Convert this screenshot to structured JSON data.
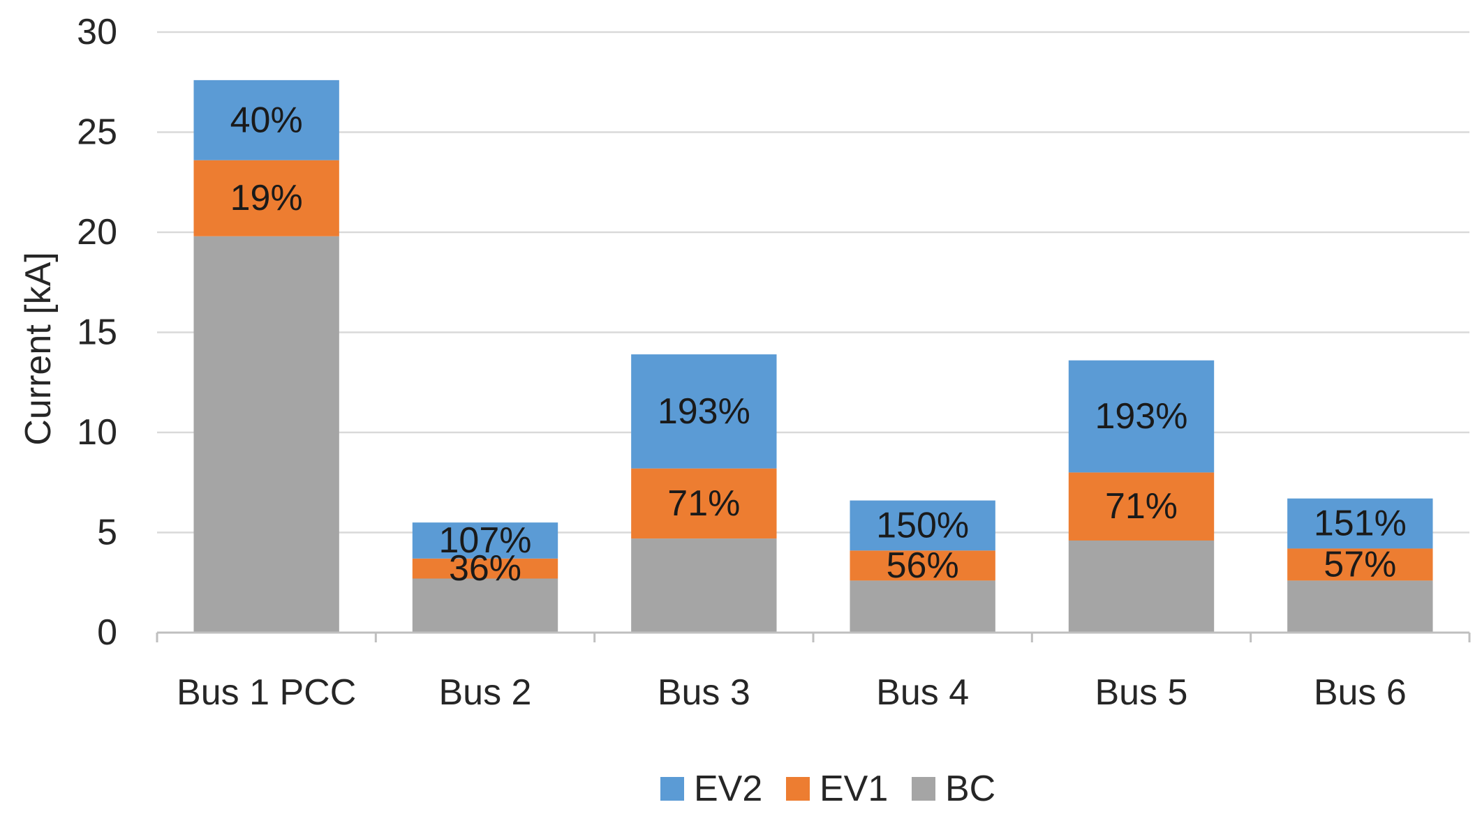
{
  "chart_data": {
    "type": "bar",
    "stacked": true,
    "title": "",
    "xlabel": "",
    "ylabel": "Current [kA]",
    "ylim": [
      0,
      30
    ],
    "yticks": [
      0,
      5,
      10,
      15,
      20,
      25,
      30
    ],
    "grid": true,
    "legend": "bottom-center",
    "categories": [
      "Bus 1 PCC",
      "Bus 2",
      "Bus 3",
      "Bus 4",
      "Bus 5",
      "Bus 6"
    ],
    "series": [
      {
        "name": "BC",
        "color": "#a5a5a5",
        "values": [
          19.8,
          2.7,
          4.7,
          2.6,
          4.6,
          2.6
        ],
        "labels": [
          "",
          "",
          "",
          "",
          "",
          ""
        ]
      },
      {
        "name": "EV1",
        "color": "#ed7d31",
        "values": [
          3.8,
          1.0,
          3.5,
          1.5,
          3.4,
          1.6
        ],
        "labels": [
          "19%",
          "36%",
          "71%",
          "56%",
          "71%",
          "57%"
        ]
      },
      {
        "name": "EV2",
        "color": "#5b9bd5",
        "values": [
          4.0,
          1.8,
          5.7,
          2.5,
          5.6,
          2.5
        ],
        "labels": [
          "40%",
          "107%",
          "193%",
          "150%",
          "193%",
          "151%"
        ]
      }
    ],
    "legend_order": [
      "EV2",
      "EV1",
      "BC"
    ]
  }
}
